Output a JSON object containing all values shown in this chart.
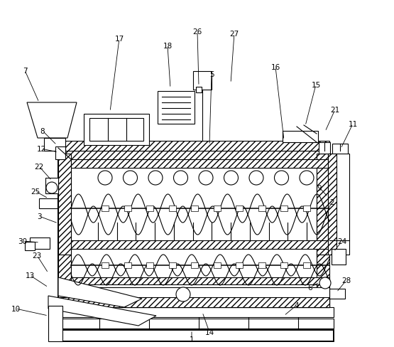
{
  "fig_width": 5.55,
  "fig_height": 4.89,
  "dpi": 100,
  "bg_color": "#ffffff",
  "line_color": "#000000",
  "line_width": 0.8,
  "thick_line": 1.4,
  "leaders": {
    "1": {
      "lpos": [
        270,
        11
      ],
      "ppos": [
        270,
        24
      ]
    },
    "2": {
      "lpos": [
        468,
        204
      ],
      "ppos": [
        462,
        194
      ]
    },
    "3": {
      "lpos": [
        55,
        184
      ],
      "ppos": [
        82,
        174
      ]
    },
    "4": {
      "lpos": [
        418,
        59
      ],
      "ppos": [
        400,
        44
      ]
    },
    "5": {
      "lpos": [
        298,
        384
      ],
      "ppos": [
        295,
        284
      ]
    },
    "6": {
      "lpos": [
        437,
        84
      ],
      "ppos": [
        450,
        91
      ]
    },
    "7": {
      "lpos": [
        35,
        389
      ],
      "ppos": [
        55,
        344
      ]
    },
    "8": {
      "lpos": [
        60,
        304
      ],
      "ppos": [
        80,
        284
      ]
    },
    "9": {
      "lpos": [
        450,
        224
      ],
      "ppos": [
        462,
        211
      ]
    },
    "10": {
      "lpos": [
        22,
        54
      ],
      "ppos": [
        68,
        44
      ]
    },
    "11": {
      "lpos": [
        497,
        314
      ],
      "ppos": [
        480,
        279
      ]
    },
    "12": {
      "lpos": [
        58,
        279
      ],
      "ppos": [
        82,
        274
      ]
    },
    "13": {
      "lpos": [
        42,
        101
      ],
      "ppos": [
        68,
        84
      ]
    },
    "14": {
      "lpos": [
        295,
        21
      ],
      "ppos": [
        285,
        49
      ]
    },
    "15": {
      "lpos": [
        445,
        369
      ],
      "ppos": [
        430,
        311
      ]
    },
    "16": {
      "lpos": [
        388,
        394
      ],
      "ppos": [
        400,
        291
      ]
    },
    "17": {
      "lpos": [
        168,
        434
      ],
      "ppos": [
        155,
        331
      ]
    },
    "18": {
      "lpos": [
        236,
        424
      ],
      "ppos": [
        240,
        364
      ]
    },
    "21": {
      "lpos": [
        472,
        334
      ],
      "ppos": [
        458,
        303
      ]
    },
    "22": {
      "lpos": [
        55,
        254
      ],
      "ppos": [
        73,
        234
      ]
    },
    "23": {
      "lpos": [
        52,
        129
      ],
      "ppos": [
        68,
        104
      ]
    },
    "24": {
      "lpos": [
        482,
        149
      ],
      "ppos": [
        470,
        134
      ]
    },
    "25": {
      "lpos": [
        50,
        219
      ],
      "ppos": [
        68,
        209
      ]
    },
    "26": {
      "lpos": [
        278,
        444
      ],
      "ppos": [
        280,
        367
      ]
    },
    "27": {
      "lpos": [
        330,
        441
      ],
      "ppos": [
        325,
        371
      ]
    },
    "28": {
      "lpos": [
        488,
        94
      ],
      "ppos": [
        474,
        77
      ]
    },
    "30": {
      "lpos": [
        32,
        149
      ],
      "ppos": [
        56,
        147
      ]
    }
  }
}
